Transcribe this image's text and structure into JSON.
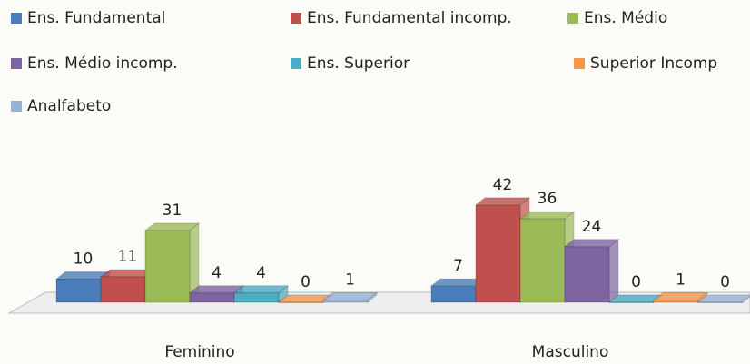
{
  "chart_data": {
    "type": "bar3d",
    "categories": [
      "Feminino",
      "Masculino"
    ],
    "series": [
      {
        "name": "Ens. Fundamental",
        "color": "#4a7ebb",
        "values": [
          10,
          7
        ]
      },
      {
        "name": "Ens. Fundamental  incomp.",
        "color": "#c0504d",
        "values": [
          11,
          42
        ]
      },
      {
        "name": "Ens. Médio",
        "color": "#9bbb59",
        "values": [
          31,
          36
        ]
      },
      {
        "name": "Ens. Médio incomp.",
        "color": "#7f64a2",
        "values": [
          4,
          24
        ]
      },
      {
        "name": "Ens. Superior",
        "color": "#4bacc6",
        "values": [
          4,
          0
        ]
      },
      {
        "name": "Superior Incomp",
        "color": "#f79646",
        "values": [
          0,
          1
        ]
      },
      {
        "name": "Analfabeto",
        "color": "#95b3d7",
        "values": [
          1,
          0
        ]
      }
    ]
  }
}
